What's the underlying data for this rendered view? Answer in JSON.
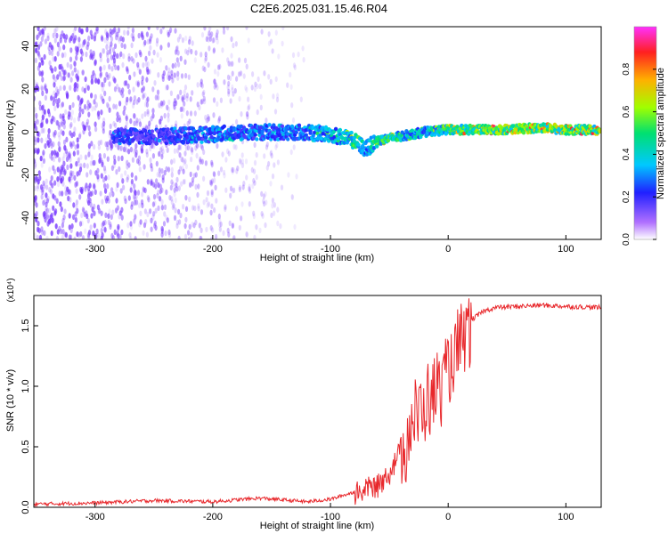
{
  "title": "C2E6.2025.031.15.46.R04",
  "colors": {
    "snr_line": "#e8282c",
    "spectral_points": "#7a3cff"
  },
  "chart_data": [
    {
      "type": "heatmap",
      "title": "C2E6.2025.031.15.46.R04",
      "xlabel": "Height of straight line (km)",
      "ylabel": "Frequency (Hz)",
      "xlim": [
        -352,
        130
      ],
      "ylim": [
        -50,
        49
      ],
      "xticks": [
        -300,
        -200,
        -100,
        0,
        100
      ],
      "yticks": [
        -40,
        -20,
        0,
        20,
        40
      ],
      "colorbar": {
        "label": "Normalized spectral amplitude",
        "range": [
          0,
          1
        ],
        "ticks": [
          "0.0",
          "0.2",
          "0.4",
          "0.6",
          "0.8"
        ],
        "tick_values": [
          0.0,
          0.2,
          0.4,
          0.6,
          0.8
        ]
      },
      "ridge": {
        "x": [
          -280,
          -240,
          -200,
          -160,
          -130,
          -100,
          -80,
          -70,
          -60,
          -40,
          -20,
          0,
          40,
          80,
          100,
          130
        ],
        "frequency": [
          -2,
          -2,
          -1,
          0,
          0,
          -1,
          -4,
          -8,
          -4,
          -2,
          0,
          1,
          1,
          2,
          1,
          1
        ],
        "amplitude": [
          0.3,
          0.3,
          0.4,
          0.4,
          0.4,
          0.5,
          0.6,
          0.45,
          0.7,
          0.6,
          0.5,
          0.7,
          0.8,
          0.85,
          0.8,
          0.8
        ]
      },
      "noise_region_x": [
        -352,
        -110
      ],
      "grid": false
    },
    {
      "type": "line",
      "xlabel": "Height of straight line (km)",
      "ylabel": "SNR (10 * v/v)",
      "y_multiplier": "(x10⁴)",
      "xlim": [
        -352,
        130
      ],
      "ylim": [
        0,
        1.75
      ],
      "xticks": [
        -300,
        -200,
        -100,
        0,
        100
      ],
      "yticks": [
        "0.0",
        "0.5",
        "1.0",
        "1.5"
      ],
      "ytick_values": [
        0.0,
        0.5,
        1.0,
        1.5
      ],
      "series": [
        {
          "x": [
            -352,
            -300,
            -250,
            -200,
            -160,
            -120,
            -100,
            -80,
            -60,
            -50,
            -40,
            -30,
            -20,
            -10,
            0,
            10,
            20,
            30,
            40,
            60,
            80,
            100,
            130
          ],
          "values": [
            0.02,
            0.03,
            0.05,
            0.04,
            0.07,
            0.04,
            0.06,
            0.12,
            0.2,
            0.3,
            0.5,
            0.75,
            0.85,
            1.0,
            1.15,
            1.35,
            1.55,
            1.62,
            1.65,
            1.66,
            1.67,
            1.66,
            1.65
          ]
        }
      ],
      "grid": false
    }
  ]
}
